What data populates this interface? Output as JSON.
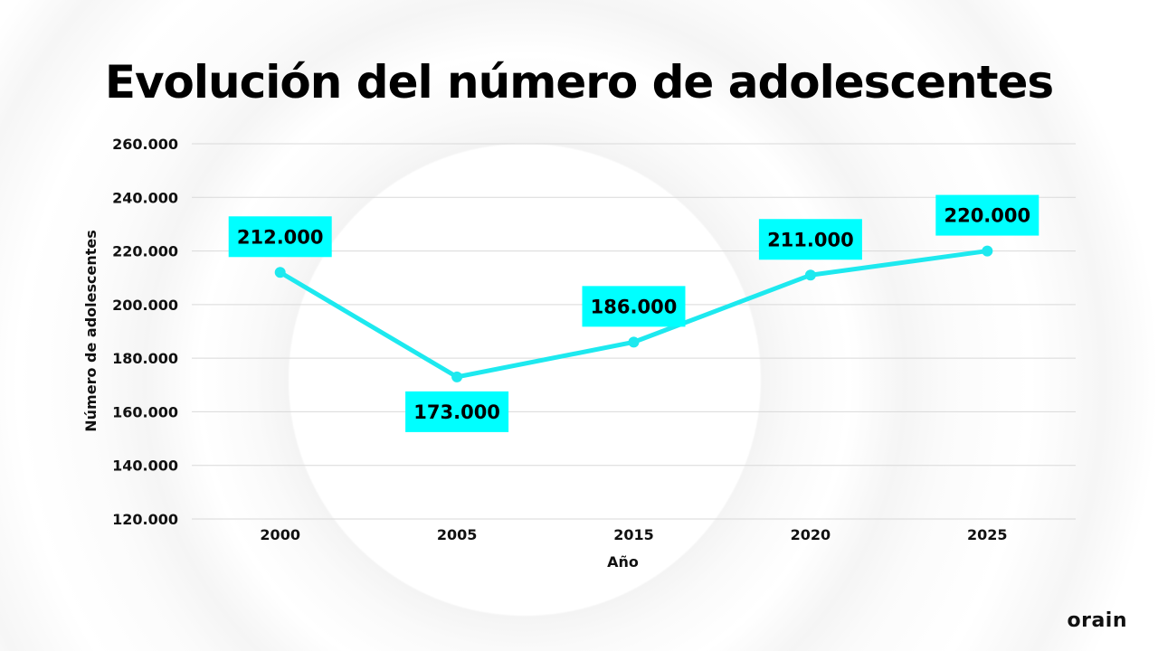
{
  "chart_data": {
    "type": "line",
    "title": "Evolución del número de adolescentes",
    "xlabel": "Año",
    "ylabel": "Número de adolescentes",
    "categories": [
      "2000",
      "2005",
      "2015",
      "2020",
      "2025"
    ],
    "values": [
      212000,
      173000,
      186000,
      211000,
      220000
    ],
    "data_labels": [
      "212.000",
      "173.000",
      "186.000",
      "211.000",
      "220.000"
    ],
    "ylim": [
      120000,
      260000
    ],
    "yticks": [
      "120.000",
      "140.000",
      "160.000",
      "180.000",
      "200.000",
      "220.000",
      "240.000",
      "260.000"
    ],
    "grid": true,
    "colors": {
      "line": "#1de9ef",
      "label_box": "#00ffff"
    }
  },
  "brand": {
    "logo": "orain"
  }
}
